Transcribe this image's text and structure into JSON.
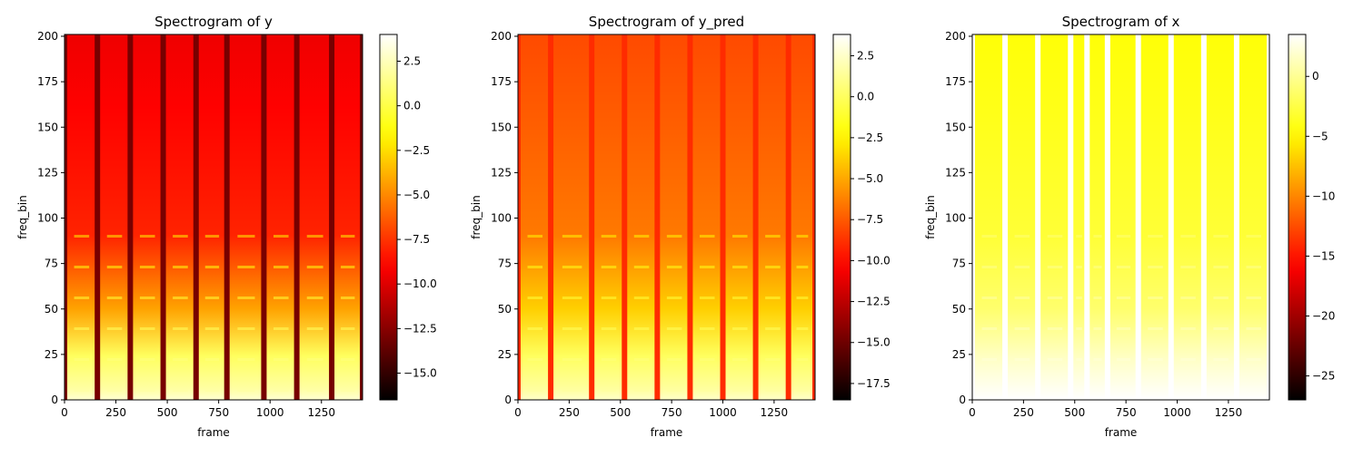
{
  "chart_data": [
    {
      "type": "heatmap",
      "title": "Spectrogram of y",
      "xlabel": "frame",
      "ylabel": "freq_bin",
      "xlim": [
        0,
        1450
      ],
      "ylim": [
        0,
        201
      ],
      "x_ticks": [
        "0",
        "250",
        "500",
        "750",
        "1000",
        "1250"
      ],
      "x_tick_values": [
        0,
        250,
        500,
        750,
        1000,
        1250
      ],
      "y_ticks": [
        "0",
        "25",
        "50",
        "75",
        "100",
        "125",
        "150",
        "175",
        "200"
      ],
      "y_tick_values": [
        0,
        25,
        50,
        75,
        100,
        125,
        150,
        175,
        200
      ],
      "colormap": "hot",
      "colorbar": {
        "range": [
          -16.5,
          4.0
        ],
        "ticks": [
          "2.5",
          "0.0",
          "−2.5",
          "−5.0",
          "−7.5",
          "−10.0",
          "−12.5",
          "−15.0"
        ],
        "tick_values": [
          2.5,
          0.0,
          -2.5,
          -5.0,
          -7.5,
          -10.0,
          -12.5,
          -15.0
        ]
      },
      "segment_boundaries": [
        0,
        160,
        320,
        480,
        640,
        790,
        970,
        1130,
        1300,
        1450
      ],
      "base_value": -9.0,
      "gap_value": -13.0,
      "low_freq_value": 0.5
    },
    {
      "type": "heatmap",
      "title": "Spectrogram of y_pred",
      "xlabel": "frame",
      "ylabel": "freq_bin",
      "xlim": [
        0,
        1450
      ],
      "ylim": [
        0,
        201
      ],
      "x_ticks": [
        "0",
        "250",
        "500",
        "750",
        "1000",
        "1250"
      ],
      "x_tick_values": [
        0,
        250,
        500,
        750,
        1000,
        1250
      ],
      "y_ticks": [
        "0",
        "25",
        "50",
        "75",
        "100",
        "125",
        "150",
        "175",
        "200"
      ],
      "y_tick_values": [
        0,
        25,
        50,
        75,
        100,
        125,
        150,
        175,
        200
      ],
      "colormap": "hot",
      "colorbar": {
        "range": [
          -18.5,
          3.8
        ],
        "ticks": [
          "2.5",
          "0.0",
          "−2.5",
          "−5.0",
          "−7.5",
          "−10.0",
          "−12.5",
          "−15.0",
          "−17.5"
        ],
        "tick_values": [
          2.5,
          0.0,
          -2.5,
          -5.0,
          -7.5,
          -10.0,
          -12.5,
          -15.0,
          -17.5
        ]
      },
      "segment_boundaries": [
        0,
        160,
        360,
        520,
        680,
        840,
        1000,
        1160,
        1320,
        1450
      ],
      "base_value": -7.5,
      "gap_value": -9.0,
      "low_freq_value": 0.0
    },
    {
      "type": "heatmap",
      "title": "Spectrogram of x",
      "xlabel": "frame",
      "ylabel": "freq_bin",
      "xlim": [
        0,
        1450
      ],
      "ylim": [
        0,
        201
      ],
      "x_ticks": [
        "0",
        "250",
        "500",
        "750",
        "1000",
        "1250"
      ],
      "x_tick_values": [
        0,
        250,
        500,
        750,
        1000,
        1250
      ],
      "y_ticks": [
        "0",
        "25",
        "50",
        "75",
        "100",
        "125",
        "150",
        "175",
        "200"
      ],
      "y_tick_values": [
        0,
        25,
        50,
        75,
        100,
        125,
        150,
        175,
        200
      ],
      "colormap": "hot",
      "colorbar": {
        "range": [
          -27.0,
          3.5
        ],
        "ticks": [
          "0",
          "−5",
          "−10",
          "−15",
          "−20",
          "−25"
        ],
        "tick_values": [
          0,
          -5,
          -10,
          -15,
          -20,
          -25
        ]
      },
      "segment_boundaries": [
        0,
        160,
        320,
        480,
        560,
        660,
        810,
        970,
        1130,
        1290,
        1450
      ],
      "base_value": -4.0,
      "gap_value": 3.5,
      "low_freq_value": 1.5
    }
  ]
}
